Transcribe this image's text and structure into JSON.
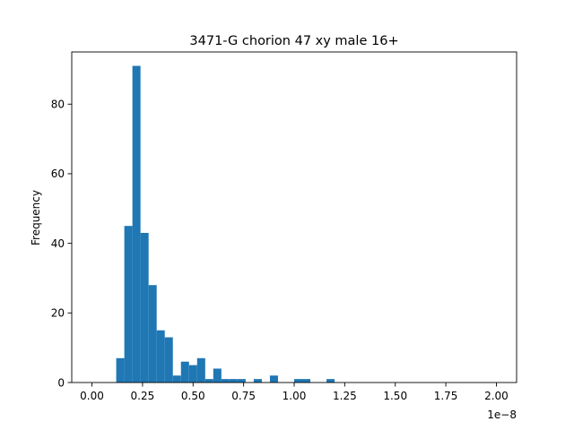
{
  "chart_data": {
    "type": "bar",
    "title": "3471-G chorion 47 xy male 16+",
    "ylabel": "Frequency",
    "xlabel": "",
    "x_offset_label": "1e−8",
    "x_scale": "1e-8",
    "xlim": [
      -0.1,
      2.1
    ],
    "ylim": [
      0,
      95
    ],
    "bin_width": 0.04,
    "x_ticks": [
      0.0,
      0.25,
      0.5,
      0.75,
      1.0,
      1.25,
      1.5,
      1.75,
      2.0
    ],
    "x_tick_labels": [
      "0.00",
      "0.25",
      "0.50",
      "0.75",
      "1.00",
      "1.25",
      "1.50",
      "1.75",
      "2.00"
    ],
    "y_ticks": [
      0,
      20,
      40,
      60,
      80
    ],
    "y_tick_labels": [
      "0",
      "20",
      "40",
      "60",
      "80"
    ],
    "grid": false,
    "bins": [
      {
        "x": 0.12,
        "count": 7
      },
      {
        "x": 0.16,
        "count": 45
      },
      {
        "x": 0.2,
        "count": 91
      },
      {
        "x": 0.24,
        "count": 43
      },
      {
        "x": 0.28,
        "count": 28
      },
      {
        "x": 0.32,
        "count": 15
      },
      {
        "x": 0.36,
        "count": 13
      },
      {
        "x": 0.4,
        "count": 2
      },
      {
        "x": 0.44,
        "count": 6
      },
      {
        "x": 0.48,
        "count": 5
      },
      {
        "x": 0.52,
        "count": 7
      },
      {
        "x": 0.56,
        "count": 1
      },
      {
        "x": 0.6,
        "count": 4
      },
      {
        "x": 0.64,
        "count": 1
      },
      {
        "x": 0.68,
        "count": 1
      },
      {
        "x": 0.72,
        "count": 1
      },
      {
        "x": 0.8,
        "count": 1
      },
      {
        "x": 0.88,
        "count": 2
      },
      {
        "x": 1.0,
        "count": 1
      },
      {
        "x": 1.04,
        "count": 1
      },
      {
        "x": 1.16,
        "count": 1
      }
    ]
  }
}
